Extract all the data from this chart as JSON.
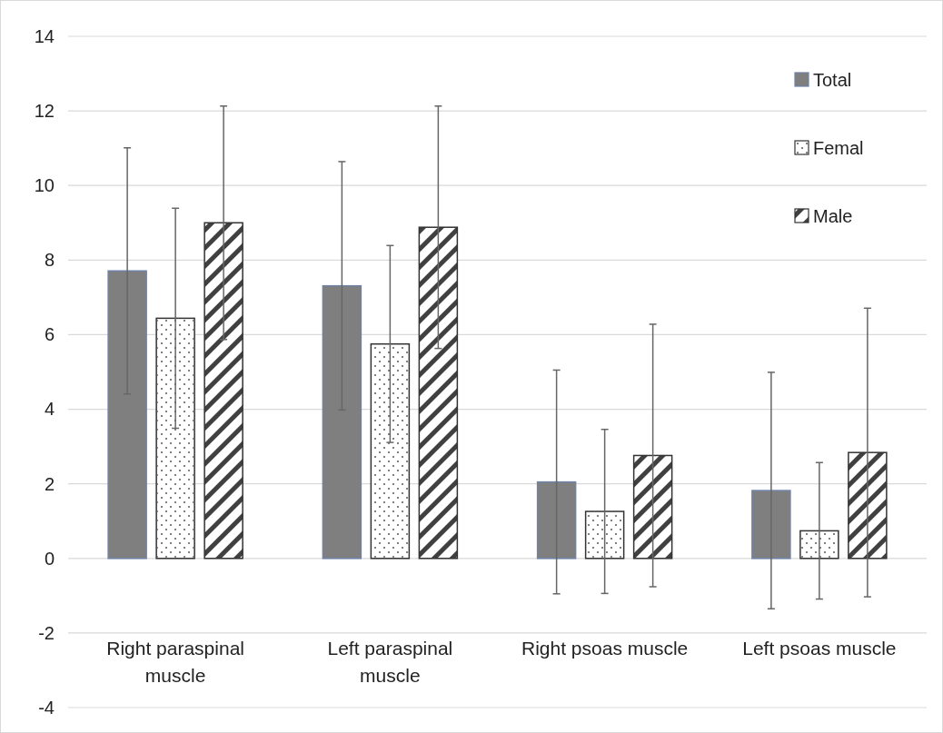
{
  "chart_data": {
    "type": "bar",
    "categories": [
      "Right paraspinal muscle",
      "Left paraspinal muscle",
      "Right psoas muscle",
      "Left psoas muscle"
    ],
    "series": [
      {
        "name": "Total",
        "color": "#7f7f7f",
        "values": [
          7.71,
          7.31,
          2.05,
          1.82
        ],
        "errors": [
          3.3,
          3.33,
          3.0,
          3.17
        ]
      },
      {
        "name": "Femal",
        "color": "#ffffff",
        "values": [
          6.44,
          5.75,
          1.26,
          0.74
        ],
        "errors": [
          2.95,
          2.64,
          2.2,
          1.83
        ]
      },
      {
        "name": "Male",
        "color": "#404040",
        "values": [
          9.0,
          8.88,
          2.76,
          2.84
        ],
        "errors": [
          3.13,
          3.25,
          3.52,
          3.87
        ]
      }
    ],
    "ylim": [
      -4,
      14
    ],
    "yticks": [
      -4,
      -2,
      0,
      2,
      4,
      6,
      8,
      10,
      12,
      14
    ],
    "grid": "y",
    "legend": "top right"
  }
}
